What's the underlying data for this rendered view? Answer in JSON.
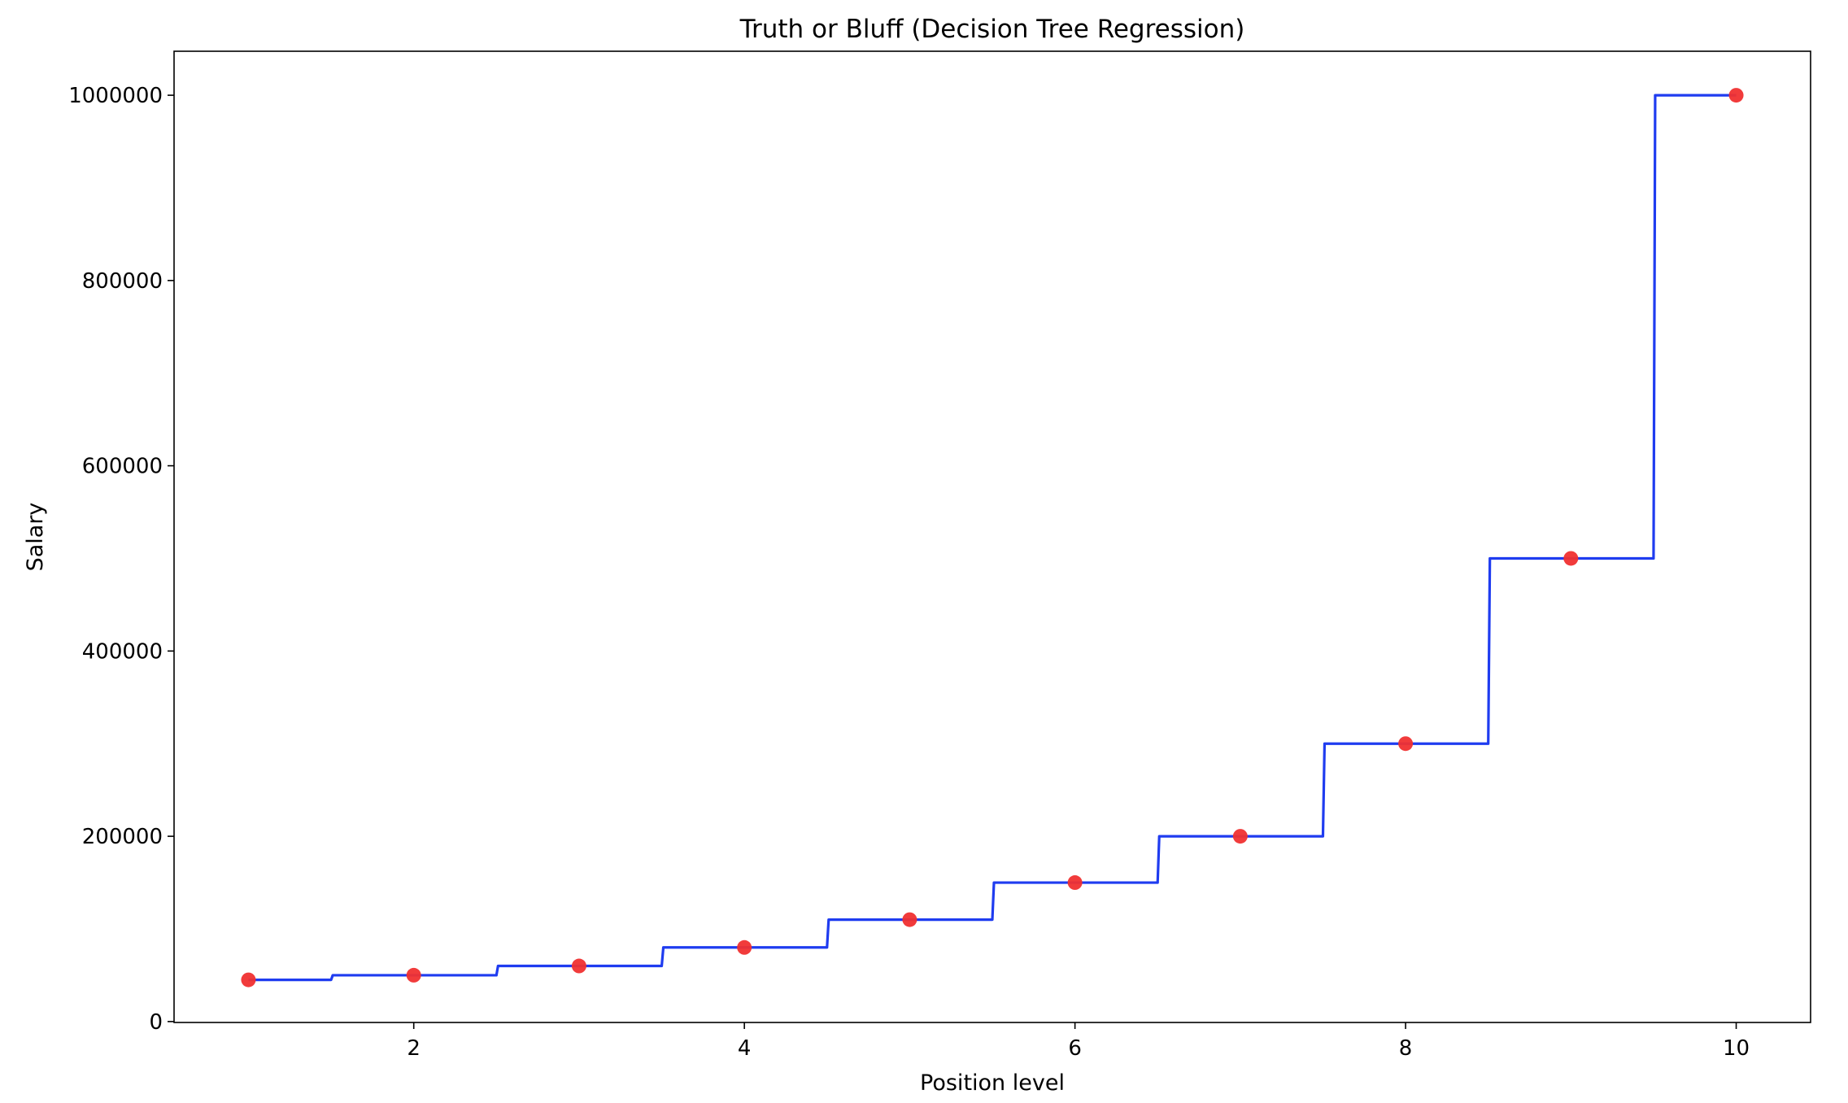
{
  "chart_data": {
    "type": "scatter",
    "title": "Truth or Bluff (Decision Tree Regression)",
    "xlabel": "Position level",
    "ylabel": "Salary",
    "xlim": [
      0.55,
      10.45
    ],
    "ylim": [
      -1000,
      1047500
    ],
    "xticks": [
      2,
      4,
      6,
      8,
      10
    ],
    "yticks": [
      0,
      200000,
      400000,
      600000,
      800000,
      1000000
    ],
    "grid": false,
    "series": [
      {
        "kind": "scatter",
        "color": "#f03030",
        "points": [
          {
            "x": 1,
            "y": 45000
          },
          {
            "x": 2,
            "y": 50000
          },
          {
            "x": 3,
            "y": 60000
          },
          {
            "x": 4,
            "y": 80000
          },
          {
            "x": 5,
            "y": 110000
          },
          {
            "x": 6,
            "y": 150000
          },
          {
            "x": 7,
            "y": 200000
          },
          {
            "x": 8,
            "y": 300000
          },
          {
            "x": 9,
            "y": 500000
          },
          {
            "x": 10,
            "y": 1000000
          }
        ]
      },
      {
        "kind": "step-line",
        "color": "#1f3cf0",
        "x_range": [
          1,
          10
        ],
        "steps": [
          {
            "from": 1,
            "to": 1.5,
            "y": 45000
          },
          {
            "from": 1.5,
            "to": 2.5,
            "y": 50000
          },
          {
            "from": 2.5,
            "to": 3.5,
            "y": 60000
          },
          {
            "from": 3.5,
            "to": 4.5,
            "y": 80000
          },
          {
            "from": 4.5,
            "to": 5.5,
            "y": 110000
          },
          {
            "from": 5.5,
            "to": 6.5,
            "y": 150000
          },
          {
            "from": 6.5,
            "to": 7.5,
            "y": 200000
          },
          {
            "from": 7.5,
            "to": 8.5,
            "y": 300000
          },
          {
            "from": 8.5,
            "to": 9.5,
            "y": 500000
          },
          {
            "from": 9.5,
            "to": 10,
            "y": 1000000
          }
        ]
      }
    ]
  }
}
